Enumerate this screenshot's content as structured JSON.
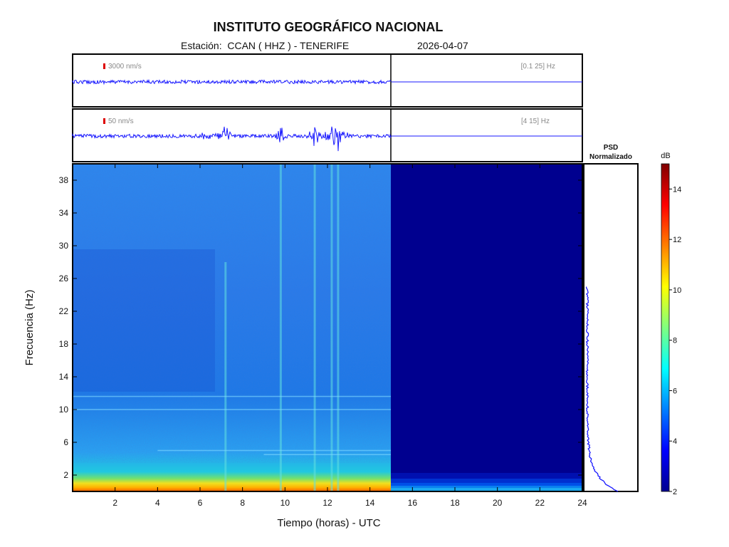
{
  "header": {
    "title": "INSTITUTO GEOGRÁFICO NACIONAL",
    "station_line": "Estación:  CCAN ( HHZ ) - TENERIFE",
    "date": "2026-04-07"
  },
  "traces": [
    {
      "scale_label": "3000 nm/s",
      "band_label": "[0.1 25] Hz"
    },
    {
      "scale_label": "50 nm/s",
      "band_label": "[4 15] Hz"
    }
  ],
  "colors": {
    "trace": "#1a1aff",
    "scale_bar": "#dd0000",
    "background_dark": "#00008f"
  },
  "chart_data": {
    "type": "heatmap",
    "xlabel": "Tiempo (horas) - UTC",
    "ylabel": "Frecuencia  (Hz)",
    "xlim": [
      0,
      24
    ],
    "ylim": [
      0,
      40
    ],
    "x_ticks": [
      "2",
      "4",
      "6",
      "8",
      "10",
      "12",
      "14",
      "16",
      "18",
      "20",
      "22",
      "24"
    ],
    "y_ticks": [
      "2",
      "6",
      "10",
      "14",
      "18",
      "22",
      "26",
      "30",
      "34",
      "38"
    ],
    "data_end_hour": 15,
    "psd_title_1": "PSD",
    "psd_title_2": "Normalizado",
    "psd_max_freq": 25,
    "colorbar_unit": "dB",
    "colorbar_range": [
      2,
      15
    ],
    "colorbar_ticks": [
      "2",
      "4",
      "6",
      "8",
      "10",
      "12",
      "14"
    ],
    "colormap": "jet",
    "event_hours": [
      7.2,
      9.8,
      11.4,
      12.2,
      12.5
    ]
  }
}
